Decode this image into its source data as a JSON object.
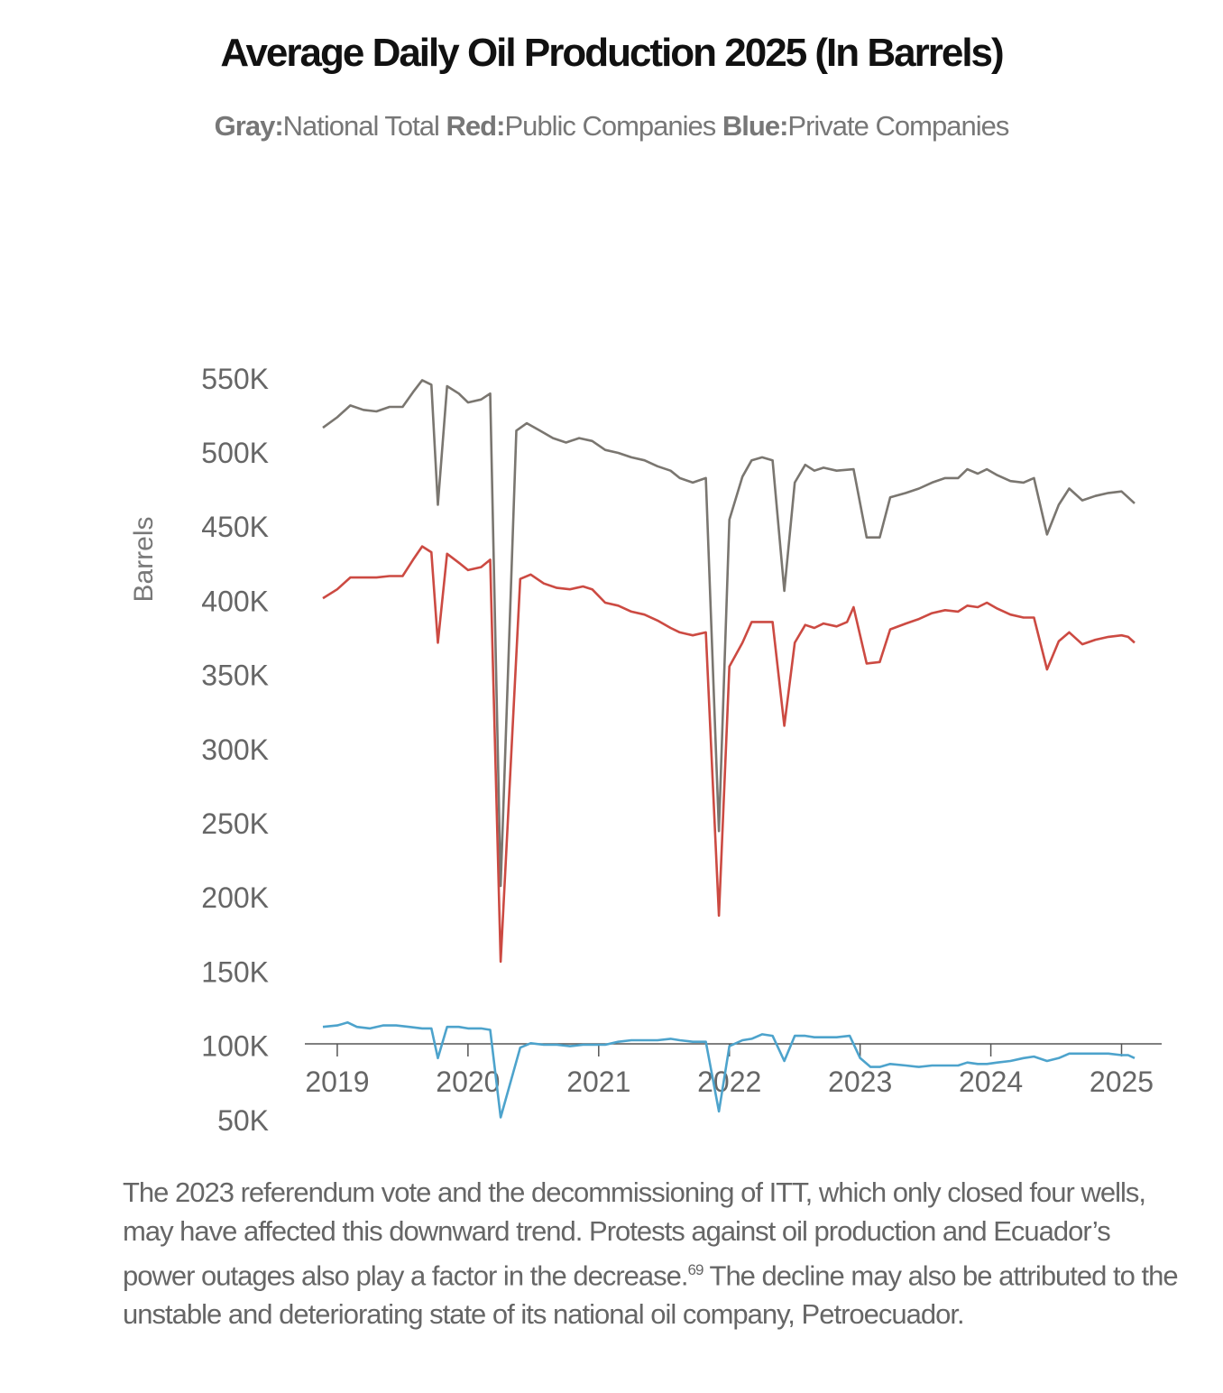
{
  "title": "Average Daily Oil Production 2025 (In Barrels)",
  "subtitle": {
    "gray_key": "Gray:",
    "gray_label": "National Total",
    "red_key": "Red:",
    "red_label": "Public Companies",
    "blue_key": "Blue:",
    "blue_label": "Private Companies"
  },
  "caption": {
    "part1": "The 2023 referendum vote and the decommissioning of ITT, which only closed four wells, may have affected this downward trend. Protests against oil production and Ecuador’s power outages also play a factor in the decrease.",
    "footnote": "69",
    "part2": " The decline may also be attributed to the unstable and deteriorating state of its national oil company, Petroecuador."
  },
  "chart_data": {
    "type": "line",
    "ylabel": "Barrels",
    "ylim": [
      0,
      550000
    ],
    "yticks": [
      50000,
      100000,
      150000,
      200000,
      250000,
      300000,
      350000,
      400000,
      450000,
      500000,
      550000
    ],
    "ytick_labels": [
      "50K",
      "100K",
      "150K",
      "200K",
      "250K",
      "300K",
      "350K",
      "400K",
      "450K",
      "500K",
      "550K"
    ],
    "xlim": [
      2018.89,
      2025.1
    ],
    "xticks": [
      2019,
      2020,
      2021,
      2022,
      2023,
      2024,
      2025
    ],
    "xtick_labels": [
      "2019",
      "2020",
      "2021",
      "2022",
      "2023",
      "2024",
      "2025"
    ],
    "grid": false,
    "legend": "subtitle",
    "colors": {
      "national": "#7a7670",
      "public": "#cc4a42",
      "private": "#4da3cc"
    },
    "series": [
      {
        "name": "National Total",
        "color": "#7a7670",
        "points": [
          [
            2018.89,
            517000
          ],
          [
            2019.0,
            524000
          ],
          [
            2019.1,
            532000
          ],
          [
            2019.2,
            529000
          ],
          [
            2019.3,
            528000
          ],
          [
            2019.4,
            531000
          ],
          [
            2019.5,
            531000
          ],
          [
            2019.58,
            541000
          ],
          [
            2019.65,
            549000
          ],
          [
            2019.72,
            546000
          ],
          [
            2019.77,
            465000
          ],
          [
            2019.84,
            545000
          ],
          [
            2019.93,
            540000
          ],
          [
            2020.0,
            534000
          ],
          [
            2020.1,
            536000
          ],
          [
            2020.17,
            540000
          ],
          [
            2020.25,
            208000
          ],
          [
            2020.37,
            515000
          ],
          [
            2020.45,
            520000
          ],
          [
            2020.55,
            515000
          ],
          [
            2020.65,
            510000
          ],
          [
            2020.75,
            507000
          ],
          [
            2020.85,
            510000
          ],
          [
            2020.95,
            508000
          ],
          [
            2021.05,
            502000
          ],
          [
            2021.15,
            500000
          ],
          [
            2021.25,
            497000
          ],
          [
            2021.35,
            495000
          ],
          [
            2021.45,
            491000
          ],
          [
            2021.55,
            488000
          ],
          [
            2021.62,
            483000
          ],
          [
            2021.72,
            480000
          ],
          [
            2021.82,
            483000
          ],
          [
            2021.92,
            245000
          ],
          [
            2022.0,
            455000
          ],
          [
            2022.1,
            484000
          ],
          [
            2022.17,
            495000
          ],
          [
            2022.25,
            497000
          ],
          [
            2022.33,
            495000
          ],
          [
            2022.42,
            407000
          ],
          [
            2022.5,
            480000
          ],
          [
            2022.58,
            492000
          ],
          [
            2022.65,
            488000
          ],
          [
            2022.72,
            490000
          ],
          [
            2022.82,
            488000
          ],
          [
            2022.95,
            489000
          ],
          [
            2023.05,
            443000
          ],
          [
            2023.15,
            443000
          ],
          [
            2023.23,
            470000
          ],
          [
            2023.35,
            473000
          ],
          [
            2023.45,
            476000
          ],
          [
            2023.55,
            480000
          ],
          [
            2023.65,
            483000
          ],
          [
            2023.75,
            483000
          ],
          [
            2023.82,
            489000
          ],
          [
            2023.9,
            486000
          ],
          [
            2023.97,
            489000
          ],
          [
            2024.05,
            485000
          ],
          [
            2024.15,
            481000
          ],
          [
            2024.25,
            480000
          ],
          [
            2024.33,
            483000
          ],
          [
            2024.43,
            445000
          ],
          [
            2024.52,
            465000
          ],
          [
            2024.6,
            476000
          ],
          [
            2024.7,
            468000
          ],
          [
            2024.8,
            471000
          ],
          [
            2024.9,
            473000
          ],
          [
            2025.0,
            474000
          ],
          [
            2025.05,
            470000
          ],
          [
            2025.1,
            466000
          ]
        ]
      },
      {
        "name": "Public Companies",
        "color": "#cc4a42",
        "points": [
          [
            2018.89,
            402000
          ],
          [
            2019.0,
            408000
          ],
          [
            2019.1,
            416000
          ],
          [
            2019.2,
            416000
          ],
          [
            2019.3,
            416000
          ],
          [
            2019.4,
            417000
          ],
          [
            2019.5,
            417000
          ],
          [
            2019.58,
            428000
          ],
          [
            2019.65,
            437000
          ],
          [
            2019.72,
            433000
          ],
          [
            2019.77,
            372000
          ],
          [
            2019.84,
            432000
          ],
          [
            2019.93,
            426000
          ],
          [
            2020.0,
            421000
          ],
          [
            2020.1,
            423000
          ],
          [
            2020.17,
            428000
          ],
          [
            2020.25,
            157000
          ],
          [
            2020.4,
            415000
          ],
          [
            2020.48,
            418000
          ],
          [
            2020.58,
            412000
          ],
          [
            2020.68,
            409000
          ],
          [
            2020.78,
            408000
          ],
          [
            2020.88,
            410000
          ],
          [
            2020.95,
            408000
          ],
          [
            2021.05,
            399000
          ],
          [
            2021.15,
            397000
          ],
          [
            2021.25,
            393000
          ],
          [
            2021.35,
            391000
          ],
          [
            2021.45,
            387000
          ],
          [
            2021.55,
            382000
          ],
          [
            2021.62,
            379000
          ],
          [
            2021.72,
            377000
          ],
          [
            2021.82,
            379000
          ],
          [
            2021.92,
            188000
          ],
          [
            2022.0,
            356000
          ],
          [
            2022.1,
            372000
          ],
          [
            2022.17,
            386000
          ],
          [
            2022.33,
            386000
          ],
          [
            2022.42,
            316000
          ],
          [
            2022.5,
            372000
          ],
          [
            2022.58,
            384000
          ],
          [
            2022.65,
            382000
          ],
          [
            2022.72,
            385000
          ],
          [
            2022.82,
            383000
          ],
          [
            2022.9,
            386000
          ],
          [
            2022.95,
            396000
          ],
          [
            2023.05,
            358000
          ],
          [
            2023.15,
            359000
          ],
          [
            2023.23,
            381000
          ],
          [
            2023.35,
            385000
          ],
          [
            2023.45,
            388000
          ],
          [
            2023.55,
            392000
          ],
          [
            2023.65,
            394000
          ],
          [
            2023.75,
            393000
          ],
          [
            2023.82,
            397000
          ],
          [
            2023.9,
            396000
          ],
          [
            2023.97,
            399000
          ],
          [
            2024.05,
            395000
          ],
          [
            2024.15,
            391000
          ],
          [
            2024.25,
            389000
          ],
          [
            2024.33,
            389000
          ],
          [
            2024.43,
            354000
          ],
          [
            2024.52,
            373000
          ],
          [
            2024.6,
            379000
          ],
          [
            2024.7,
            371000
          ],
          [
            2024.8,
            374000
          ],
          [
            2024.9,
            376000
          ],
          [
            2025.0,
            377000
          ],
          [
            2025.05,
            376000
          ],
          [
            2025.1,
            372000
          ]
        ]
      },
      {
        "name": "Private Companies",
        "color": "#4da3cc",
        "points": [
          [
            2018.89,
            113000
          ],
          [
            2019.0,
            114000
          ],
          [
            2019.08,
            116000
          ],
          [
            2019.15,
            113000
          ],
          [
            2019.25,
            112000
          ],
          [
            2019.35,
            114000
          ],
          [
            2019.45,
            114000
          ],
          [
            2019.55,
            113000
          ],
          [
            2019.65,
            112000
          ],
          [
            2019.72,
            112000
          ],
          [
            2019.77,
            92000
          ],
          [
            2019.84,
            113000
          ],
          [
            2019.93,
            113000
          ],
          [
            2020.0,
            112000
          ],
          [
            2020.1,
            112000
          ],
          [
            2020.17,
            111000
          ],
          [
            2020.25,
            52000
          ],
          [
            2020.4,
            99000
          ],
          [
            2020.48,
            102000
          ],
          [
            2020.58,
            101000
          ],
          [
            2020.68,
            101000
          ],
          [
            2020.78,
            100000
          ],
          [
            2020.88,
            101000
          ],
          [
            2020.95,
            101000
          ],
          [
            2021.05,
            101000
          ],
          [
            2021.15,
            103000
          ],
          [
            2021.25,
            104000
          ],
          [
            2021.35,
            104000
          ],
          [
            2021.45,
            104000
          ],
          [
            2021.55,
            105000
          ],
          [
            2021.62,
            104000
          ],
          [
            2021.72,
            103000
          ],
          [
            2021.82,
            103000
          ],
          [
            2021.92,
            56000
          ],
          [
            2022.0,
            100000
          ],
          [
            2022.1,
            104000
          ],
          [
            2022.17,
            105000
          ],
          [
            2022.25,
            108000
          ],
          [
            2022.33,
            107000
          ],
          [
            2022.42,
            90000
          ],
          [
            2022.5,
            107000
          ],
          [
            2022.58,
            107000
          ],
          [
            2022.65,
            106000
          ],
          [
            2022.72,
            106000
          ],
          [
            2022.82,
            106000
          ],
          [
            2022.92,
            107000
          ],
          [
            2023.0,
            92000
          ],
          [
            2023.08,
            86000
          ],
          [
            2023.15,
            86000
          ],
          [
            2023.23,
            88000
          ],
          [
            2023.35,
            87000
          ],
          [
            2023.45,
            86000
          ],
          [
            2023.55,
            87000
          ],
          [
            2023.65,
            87000
          ],
          [
            2023.75,
            87000
          ],
          [
            2023.82,
            89000
          ],
          [
            2023.9,
            88000
          ],
          [
            2023.97,
            88000
          ],
          [
            2024.05,
            89000
          ],
          [
            2024.15,
            90000
          ],
          [
            2024.25,
            92000
          ],
          [
            2024.33,
            93000
          ],
          [
            2024.43,
            90000
          ],
          [
            2024.52,
            92000
          ],
          [
            2024.6,
            95000
          ],
          [
            2024.7,
            95000
          ],
          [
            2024.8,
            95000
          ],
          [
            2024.9,
            95000
          ],
          [
            2025.0,
            94000
          ],
          [
            2025.05,
            94000
          ],
          [
            2025.1,
            92000
          ]
        ]
      }
    ]
  }
}
